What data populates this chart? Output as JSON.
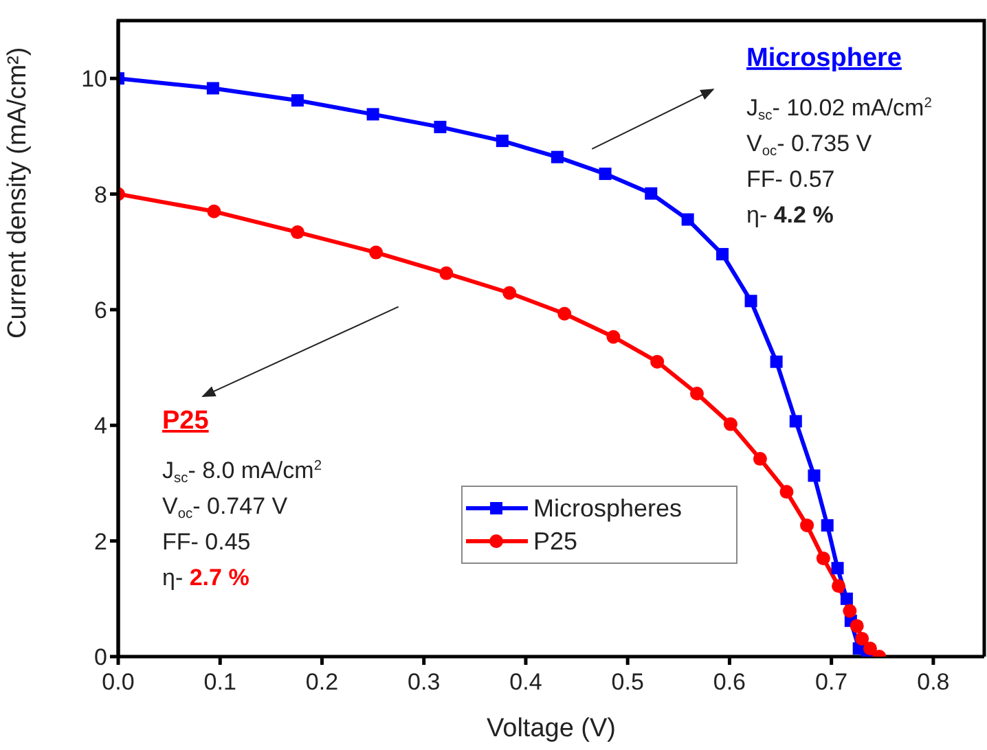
{
  "chart_data": {
    "type": "line",
    "xlabel": "Voltage (V)",
    "ylabel": "Current density (mA/cm²)",
    "xlim": [
      0,
      0.85
    ],
    "xticks": [
      {
        "value": 0,
        "label": "0.0"
      },
      0.1,
      0.2,
      0.3,
      0.4,
      0.5,
      0.6,
      0.7,
      0.8
    ],
    "ylim": [
      0,
      11
    ],
    "yticks": [
      0,
      2,
      4,
      6,
      8,
      10
    ],
    "legend": "bottom",
    "line_style": "solid",
    "series": [
      {
        "name": "Microspheres",
        "color": "#0000ff",
        "marker": "square",
        "x": [
          0,
          0.093,
          0.176,
          0.25,
          0.316,
          0.377,
          0.431,
          0.478,
          0.523,
          0.559,
          0.593,
          0.621,
          0.646,
          0.665,
          0.683,
          0.696,
          0.706,
          0.715,
          0.719,
          0.727,
          0.735
        ],
        "values": [
          10.0,
          9.83,
          9.62,
          9.38,
          9.16,
          8.92,
          8.64,
          8.35,
          8.01,
          7.56,
          6.96,
          6.15,
          5.1,
          4.07,
          3.13,
          2.27,
          1.53,
          1.0,
          0.62,
          0.14,
          0
        ]
      },
      {
        "name": "P25",
        "color": "#ff0000",
        "marker": "circle",
        "x": [
          0,
          0.094,
          0.176,
          0.253,
          0.322,
          0.384,
          0.438,
          0.486,
          0.529,
          0.568,
          0.601,
          0.63,
          0.656,
          0.676,
          0.692,
          0.707,
          0.718,
          0.725,
          0.73,
          0.738,
          0.747
        ],
        "values": [
          8.0,
          7.7,
          7.34,
          6.99,
          6.63,
          6.29,
          5.93,
          5.53,
          5.1,
          4.55,
          4.02,
          3.42,
          2.85,
          2.27,
          1.7,
          1.22,
          0.79,
          0.53,
          0.31,
          0.14,
          0
        ]
      }
    ],
    "annotations": [
      "Microsphere\nJ$_{sc}$- 10.02 mA/cm$^{2}$\nV$_{oc}$- 0.735 V\nFF- 0.57\nη- 4.2 %",
      "P25\nJ$_{sc}$- 8.0 mA/cm$^{2}$\nV$_{oc}$- 0.747 V\nFF- 0.45\nη- 2.7 %"
    ]
  }
}
